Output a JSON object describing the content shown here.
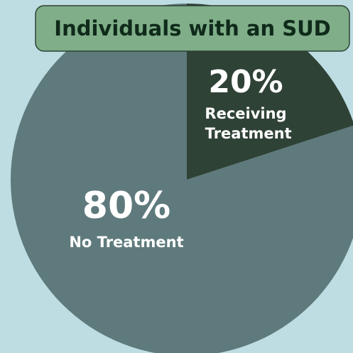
{
  "chart_data": {
    "type": "pie",
    "title": "Individuals with an SUD",
    "categories": [
      "Receiving Treatment",
      "No Treatment"
    ],
    "values": [
      20,
      80
    ],
    "value_labels": [
      "20%",
      "80%"
    ],
    "colors": [
      "#2f4236",
      "#5f7a7c"
    ]
  }
}
